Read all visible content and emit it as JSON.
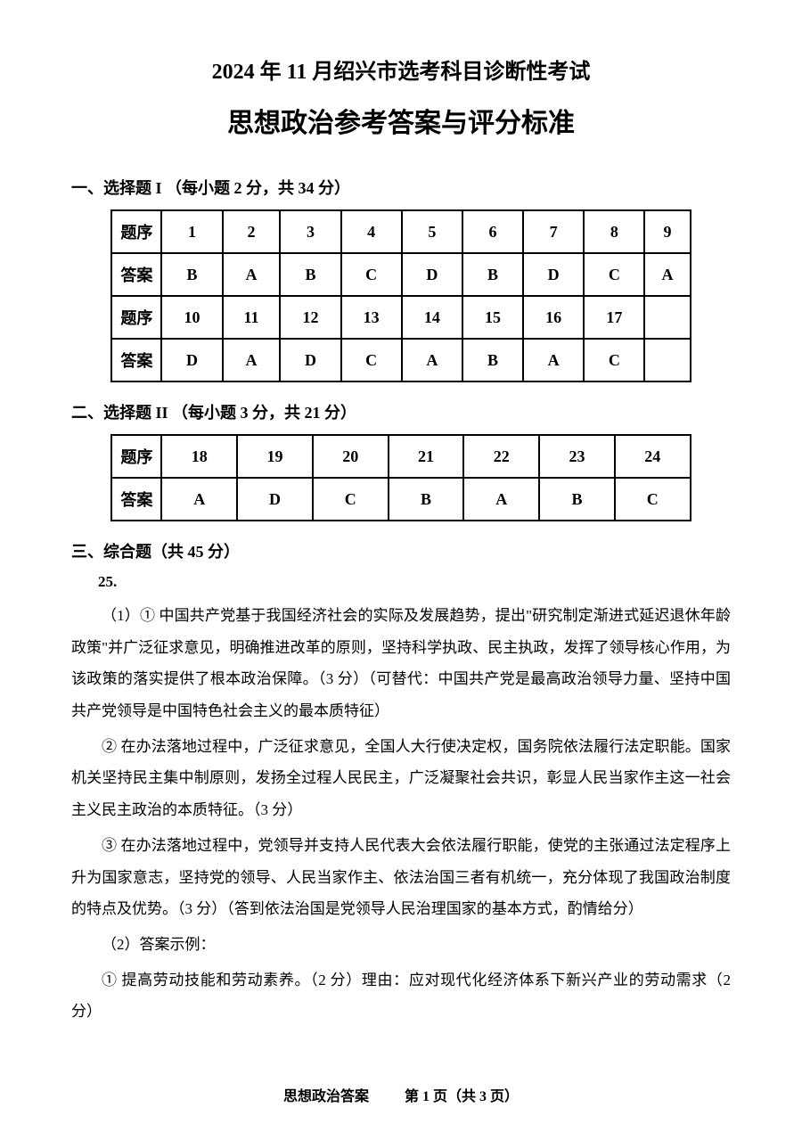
{
  "titles": {
    "line1": "2024 年 11 月绍兴市选考科目诊断性考试",
    "line2": "思想政治参考答案与评分标准"
  },
  "section1": {
    "heading": "一、选择题 I （每小题 2 分，共 34 分）",
    "label_seq": "题序",
    "label_ans": "答案",
    "seq1": [
      "1",
      "2",
      "3",
      "4",
      "5",
      "6",
      "7",
      "8",
      "9"
    ],
    "ans1": [
      "B",
      "A",
      "B",
      "C",
      "D",
      "B",
      "D",
      "C",
      "A"
    ],
    "seq2": [
      "10",
      "11",
      "12",
      "13",
      "14",
      "15",
      "16",
      "17",
      ""
    ],
    "ans2": [
      "D",
      "A",
      "D",
      "C",
      "A",
      "B",
      "A",
      "C",
      ""
    ]
  },
  "section2": {
    "heading": "二、选择题 II （每小题 3 分，共 21 分）",
    "label_seq": "题序",
    "label_ans": "答案",
    "seq": [
      "18",
      "19",
      "20",
      "21",
      "22",
      "23",
      "24"
    ],
    "ans": [
      "A",
      "D",
      "C",
      "B",
      "A",
      "B",
      "C"
    ]
  },
  "section3": {
    "heading": "三、综合题（共 45 分）",
    "qnum": "25.",
    "p1": "（1）① 中国共产党基于我国经济社会的实际及发展趋势，提出\"研究制定渐进式延迟退休年龄政策\"并广泛征求意见，明确推进改革的原则，坚持科学执政、民主执政，发挥了领导核心作用，为该政策的落实提供了根本政治保障。（3 分）（可替代：中国共产党是最高政治领导力量、坚持中国共产党领导是中国特色社会主义的最本质特征）",
    "p2": "② 在办法落地过程中，广泛征求意见，全国人大行使决定权，国务院依法履行法定职能。国家机关坚持民主集中制原则，发扬全过程人民民主，广泛凝聚社会共识，彰显人民当家作主这一社会主义民主政治的本质特征。（3 分）",
    "p3": "③ 在办法落地过程中，党领导并支持人民代表大会依法履行职能，使党的主张通过法定程序上升为国家意志，坚持党的领导、人民当家作主、依法治国三者有机统一，充分体现了我国政治制度的特点及优势。（3 分）（答到依法治国是党领导人民治理国家的基本方式，酌情给分）",
    "p4": "（2）答案示例：",
    "p5": "① 提高劳动技能和劳动素养。（2 分）理由：应对现代化经济体系下新兴产业的劳动需求（2 分）"
  },
  "footer": {
    "left": "思想政治答案",
    "right": "第 1 页（共 3 页）"
  }
}
